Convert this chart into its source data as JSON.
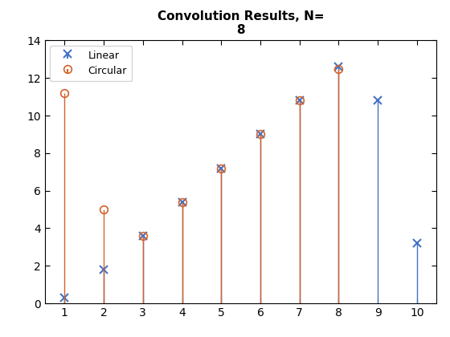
{
  "title_line1": "Convolution Results, N=",
  "title_line2": "8",
  "linear_x": [
    1,
    2,
    3,
    4,
    5,
    6,
    7,
    8,
    9,
    10
  ],
  "linear_y": [
    0.3,
    1.8,
    3.6,
    5.4,
    7.2,
    9.0,
    10.8,
    12.6,
    10.8,
    3.2
  ],
  "circular_x": [
    1,
    2,
    3,
    4,
    5,
    6,
    7,
    8
  ],
  "circular_y": [
    11.2,
    5.0,
    3.6,
    5.4,
    7.2,
    9.0,
    10.8,
    12.5
  ],
  "linear_color": "#4472C4",
  "circular_color": "#D4622A",
  "ylim": [
    0,
    14
  ],
  "xlim": [
    0.5,
    10.5
  ],
  "xticks": [
    1,
    2,
    3,
    4,
    5,
    6,
    7,
    8,
    9,
    10
  ],
  "yticks": [
    0,
    2,
    4,
    6,
    8,
    10,
    12,
    14
  ],
  "legend_linear": "Linear",
  "legend_circular": "Circular",
  "figsize": [
    5.6,
    4.2
  ],
  "dpi": 100
}
